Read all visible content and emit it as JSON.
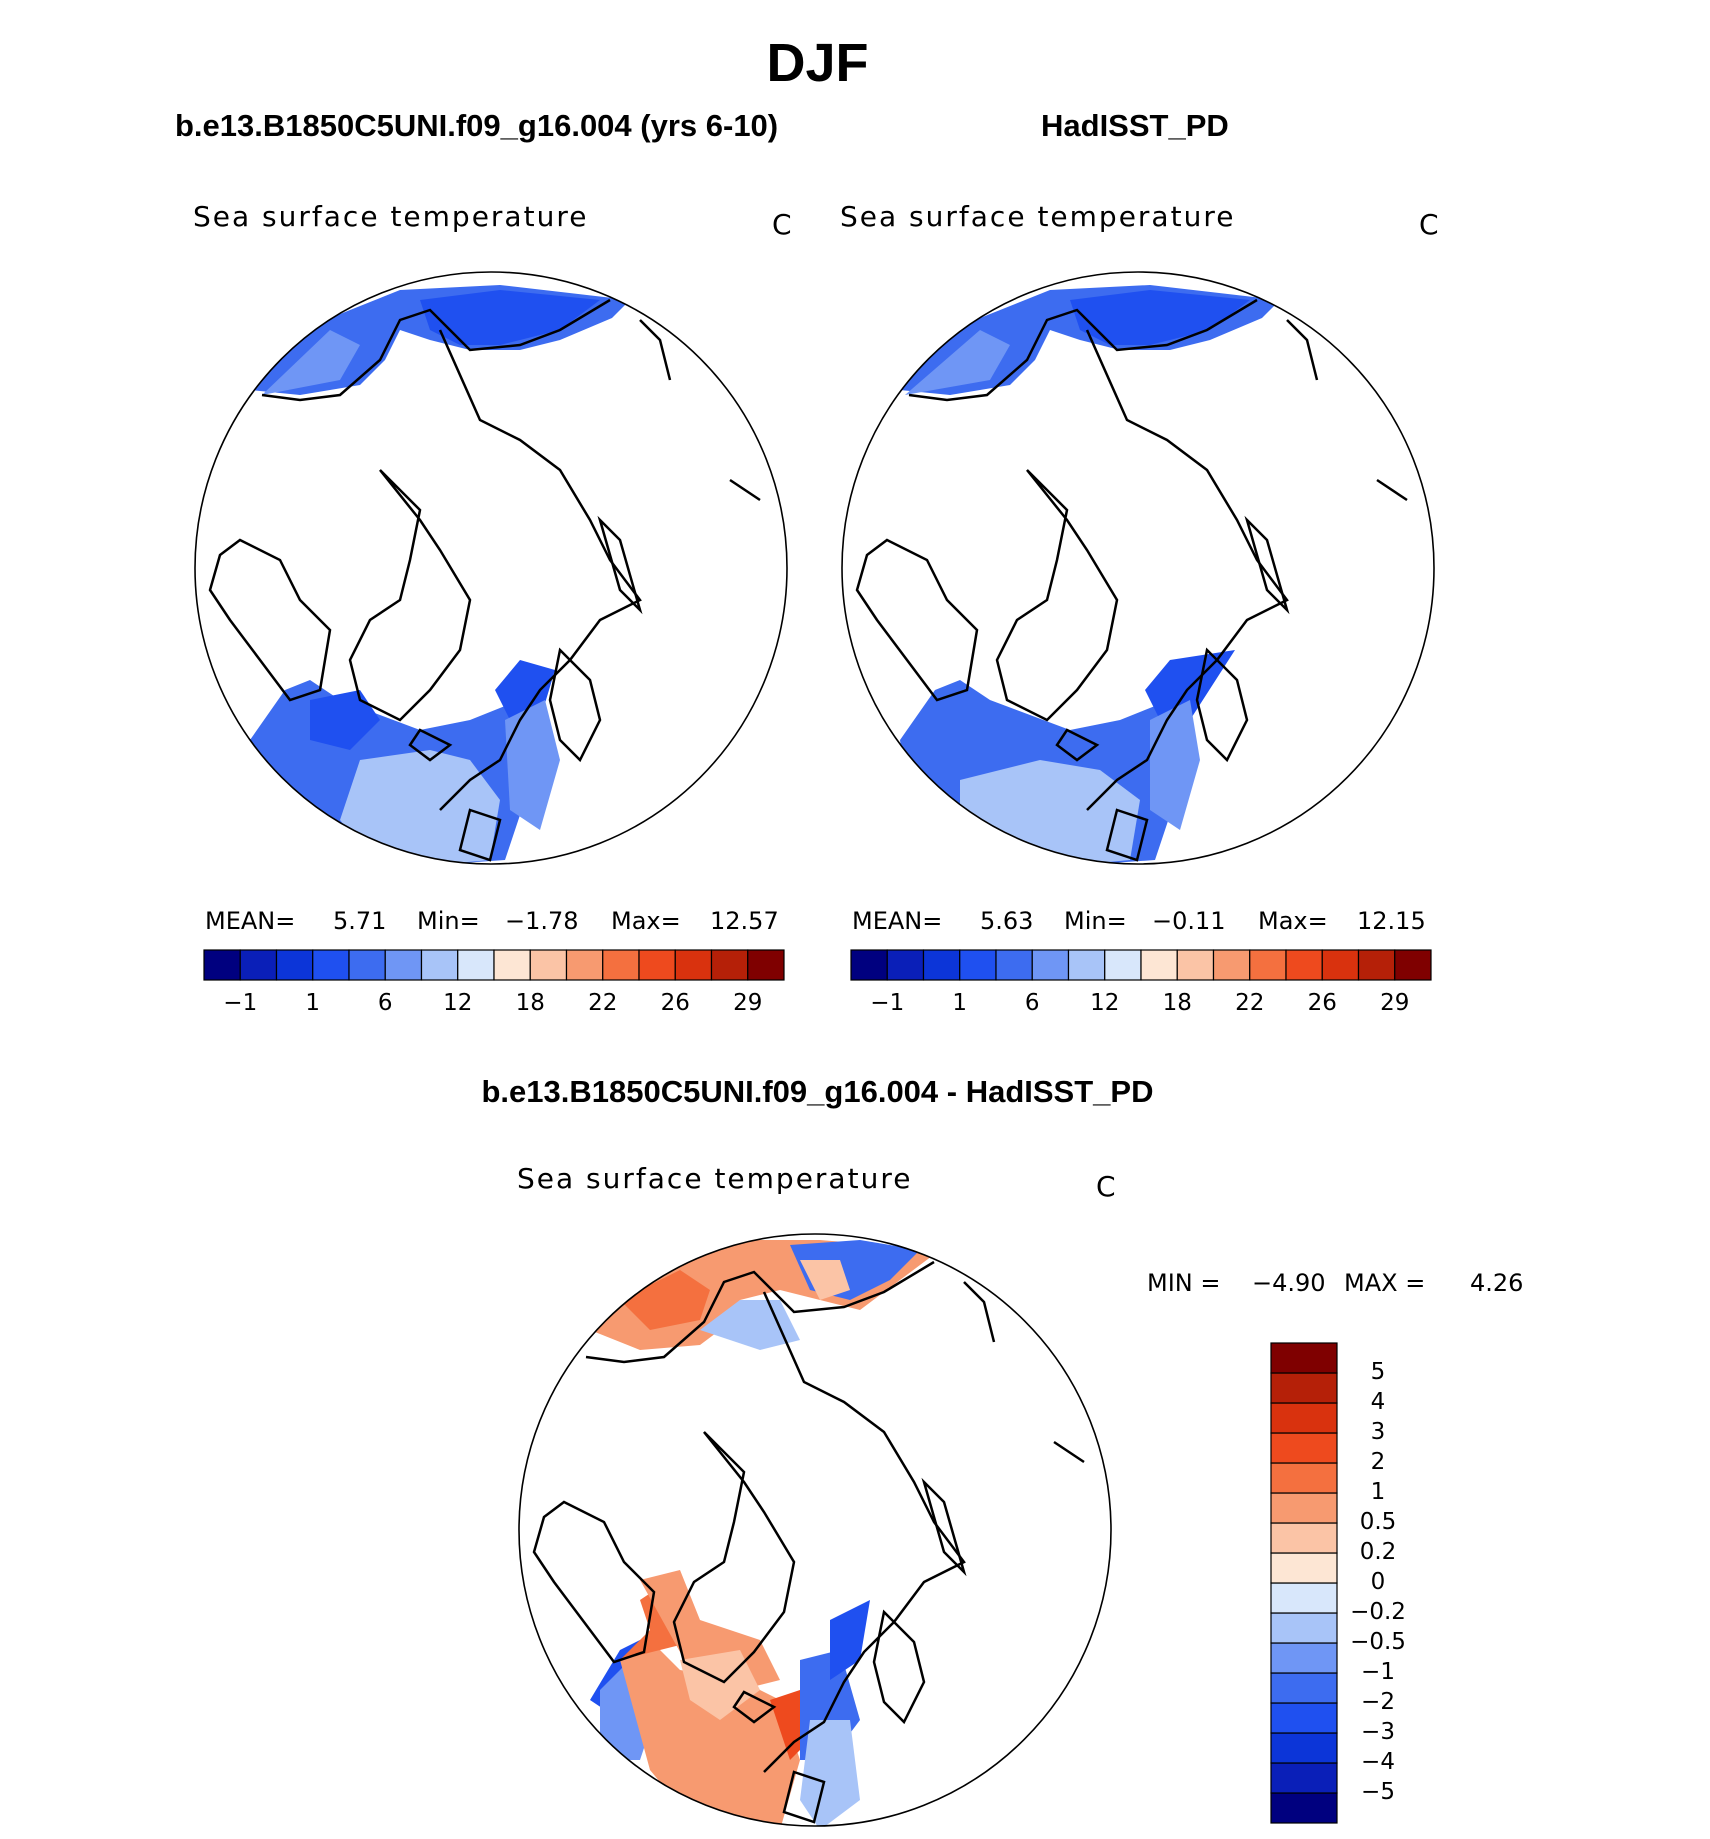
{
  "figure": {
    "title": "DJF",
    "panel_left": {
      "case": "b.e13.B1850C5UNI.f09_g16.004 (yrs 6-10)",
      "variable": "Sea surface temperature",
      "units": "C",
      "mean_label": "MEAN=",
      "mean": "5.71",
      "min_label": "Min=",
      "min": "−1.78",
      "max_label": "Max=",
      "max": "12.57"
    },
    "panel_right": {
      "case": "HadISST_PD",
      "variable": "Sea surface temperature",
      "units": "C",
      "mean_label": "MEAN=",
      "mean": "5.63",
      "min_label": "Min=",
      "min": "−0.11",
      "max_label": "Max=",
      "max": "12.15"
    },
    "panel_diff": {
      "case": "b.e13.B1850C5UNI.f09_g16.004 - HadISST_PD",
      "variable": "Sea surface temperature",
      "units": "C",
      "min_label": "MIN =",
      "min": "−4.90",
      "max_label": "MAX =",
      "max": "4.26"
    }
  },
  "chart_data": [
    {
      "type": "heatmap",
      "projection": "north polar stereographic",
      "title": "b.e13.B1850C5UNI.f09_g16.004 (yrs 6-10)",
      "variable": "Sea surface temperature",
      "units": "C",
      "stats": {
        "mean": 5.71,
        "min": -1.78,
        "max": 12.57
      },
      "colorbar_ticks": [
        "−1",
        "1",
        "6",
        "12",
        "18",
        "22",
        "26",
        "29"
      ],
      "colorbar_colors": [
        "#00007f",
        "#0a1fb8",
        "#0c35d8",
        "#1f50f0",
        "#3d6cf0",
        "#6f96f5",
        "#a8c4f8",
        "#d8e7fb",
        "#fde6d4",
        "#fbc4a6",
        "#f79a70",
        "#f4703f",
        "#ee4a1e",
        "#d9320e",
        "#b52008",
        "#7f0000"
      ]
    },
    {
      "type": "heatmap",
      "projection": "north polar stereographic",
      "title": "HadISST_PD",
      "variable": "Sea surface temperature",
      "units": "C",
      "stats": {
        "mean": 5.63,
        "min": -0.11,
        "max": 12.15
      },
      "colorbar_ticks": [
        "−1",
        "1",
        "6",
        "12",
        "18",
        "22",
        "26",
        "29"
      ],
      "colorbar_colors": [
        "#00007f",
        "#0a1fb8",
        "#0c35d8",
        "#1f50f0",
        "#3d6cf0",
        "#6f96f5",
        "#a8c4f8",
        "#d8e7fb",
        "#fde6d4",
        "#fbc4a6",
        "#f79a70",
        "#f4703f",
        "#ee4a1e",
        "#d9320e",
        "#b52008",
        "#7f0000"
      ]
    },
    {
      "type": "heatmap",
      "projection": "north polar stereographic",
      "title": "b.e13.B1850C5UNI.f09_g16.004 - HadISST_PD",
      "variable": "Sea surface temperature",
      "units": "C",
      "stats": {
        "min": -4.9,
        "max": 4.26
      },
      "colorbar_ticks": [
        "−5",
        "−4",
        "−3",
        "−2",
        "−1",
        "−0.5",
        "−0.2",
        "0",
        "0.2",
        "0.5",
        "1",
        "2",
        "3",
        "4",
        "5"
      ],
      "colorbar_colors": [
        "#00007f",
        "#0a1fb8",
        "#0c35d8",
        "#1f50f0",
        "#3d6cf0",
        "#6f96f5",
        "#a8c4f8",
        "#d8e7fb",
        "#fde6d4",
        "#fbc4a6",
        "#f79a70",
        "#f4703f",
        "#ee4a1e",
        "#d9320e",
        "#b52008",
        "#7f0000"
      ]
    }
  ]
}
